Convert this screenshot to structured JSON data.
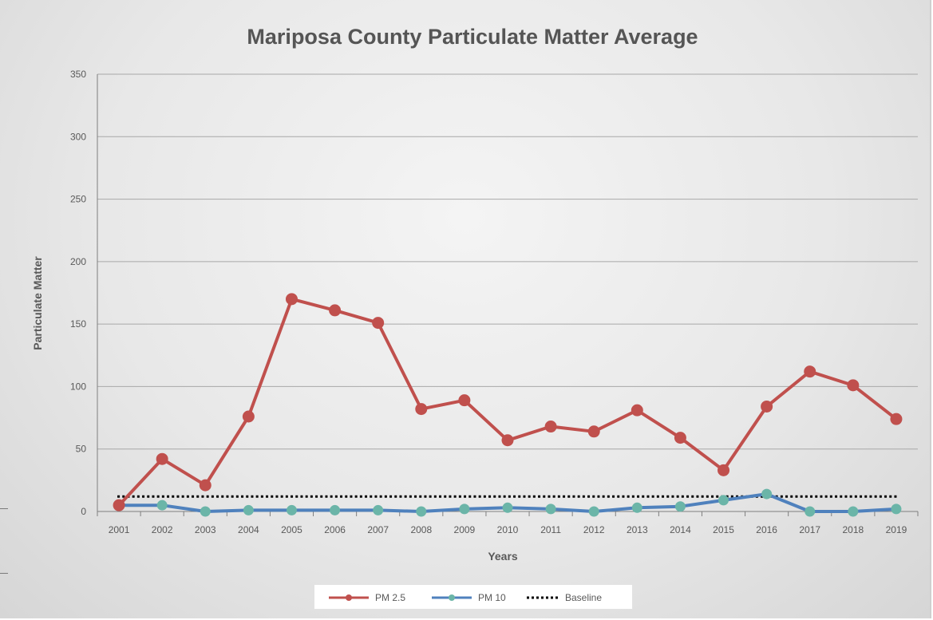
{
  "chart_data": {
    "type": "line",
    "title": "Mariposa County Particulate Matter Average",
    "xlabel": "Years",
    "ylabel": "Particulate Matter",
    "categories": [
      "2001",
      "2002",
      "2003",
      "2004",
      "2005",
      "2006",
      "2007",
      "2008",
      "2009",
      "2010",
      "2011",
      "2012",
      "2013",
      "2014",
      "2015",
      "2016",
      "2017",
      "2018",
      "2019"
    ],
    "ylim": [
      0,
      350
    ],
    "yticks": [
      0,
      50,
      100,
      150,
      200,
      250,
      300,
      350
    ],
    "grid": true,
    "legend_position": "bottom",
    "series": [
      {
        "name": "PM 2.5",
        "color": "#c0504d",
        "marker": "circle",
        "values": [
          5,
          42,
          21,
          76,
          170,
          161,
          151,
          82,
          89,
          57,
          68,
          64,
          81,
          59,
          33,
          84,
          112,
          101,
          74
        ]
      },
      {
        "name": "PM 10",
        "color": "#4f81bd",
        "marker": "circle",
        "marker_color": "#6bb5a8",
        "values": [
          5,
          5,
          0,
          1,
          1,
          1,
          1,
          0,
          2,
          3,
          2,
          0,
          3,
          4,
          9,
          14,
          0,
          0,
          2
        ]
      },
      {
        "name": "Baseline",
        "color": "#000000",
        "style": "dotted",
        "values": [
          12,
          12,
          12,
          12,
          12,
          12,
          12,
          12,
          12,
          12,
          12,
          12,
          12,
          12,
          12,
          12,
          12,
          12,
          12
        ]
      }
    ]
  }
}
